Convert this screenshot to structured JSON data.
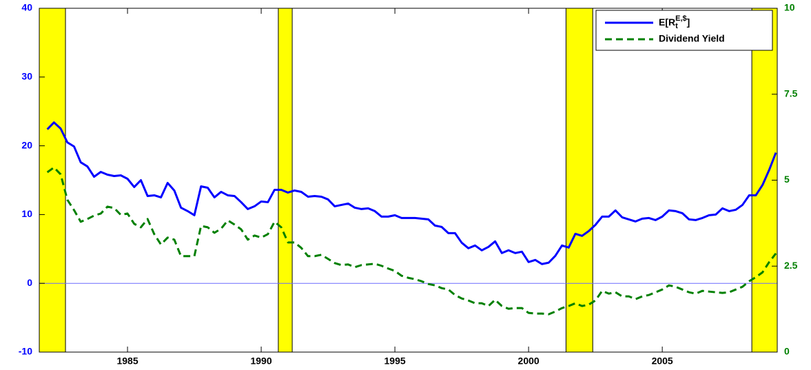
{
  "chart_data": {
    "type": "line",
    "xlim": [
      1981.7,
      2009.3
    ],
    "xticks": [
      1985,
      1990,
      1995,
      2000,
      2005
    ],
    "ylim": [
      -10,
      40
    ],
    "yticks": [
      -10,
      0,
      10,
      20,
      30,
      40
    ],
    "y2lim": [
      0,
      10
    ],
    "y2ticks": [
      0,
      2.5,
      5,
      7.5,
      10
    ],
    "y_color": "#0000ff",
    "y2_color": "#008000",
    "reference_line": {
      "value": 0,
      "color": "#6a6aff"
    },
    "shaded_regions": {
      "color": "#ffff00",
      "ranges": [
        [
          1981.7,
          1982.68
        ],
        [
          1990.64,
          1991.16
        ],
        [
          2001.4,
          2002.4
        ],
        [
          2008.35,
          2009.3
        ]
      ]
    },
    "legend": "upper right",
    "x": [
      1982,
      1982.25,
      1982.5,
      1982.75,
      1983,
      1983.25,
      1983.5,
      1983.75,
      1984,
      1984.25,
      1984.5,
      1984.75,
      1985,
      1985.25,
      1985.5,
      1985.75,
      1986,
      1986.25,
      1986.5,
      1986.75,
      1987,
      1987.25,
      1987.5,
      1987.75,
      1988,
      1988.25,
      1988.5,
      1988.75,
      1989,
      1989.25,
      1989.5,
      1989.75,
      1990,
      1990.25,
      1990.5,
      1990.75,
      1991,
      1991.25,
      1991.5,
      1991.75,
      1992,
      1992.25,
      1992.5,
      1992.75,
      1993,
      1993.25,
      1993.5,
      1993.75,
      1994,
      1994.25,
      1994.5,
      1994.75,
      1995,
      1995.25,
      1995.5,
      1995.75,
      1996,
      1996.25,
      1996.5,
      1996.75,
      1997,
      1997.25,
      1997.5,
      1997.75,
      1998,
      1998.25,
      1998.5,
      1998.75,
      1999,
      1999.25,
      1999.5,
      1999.75,
      2000,
      2000.25,
      2000.5,
      2000.75,
      2001,
      2001.25,
      2001.5,
      2001.75,
      2002,
      2002.25,
      2002.5,
      2002.75,
      2003,
      2003.25,
      2003.5,
      2003.75,
      2004,
      2004.25,
      2004.5,
      2004.75,
      2005,
      2005.25,
      2005.5,
      2005.75,
      2006,
      2006.25,
      2006.5,
      2006.75,
      2007,
      2007.25,
      2007.5,
      2007.75,
      2008,
      2008.25,
      2008.5,
      2008.75,
      2009,
      2009.25
    ],
    "series": [
      {
        "name": "E[R_t^{E,$}]",
        "color": "#0000ff",
        "dash": false,
        "values": [
          22.4,
          23.4,
          22.5,
          20.5,
          19.9,
          17.6,
          17.0,
          15.5,
          16.2,
          15.8,
          15.6,
          15.7,
          15.2,
          14.0,
          15.0,
          12.7,
          12.8,
          12.5,
          14.6,
          13.5,
          11.0,
          10.5,
          9.9,
          14.1,
          13.9,
          12.5,
          13.3,
          12.8,
          12.7,
          11.8,
          10.8,
          11.2,
          11.9,
          11.8,
          13.6,
          13.6,
          13.2,
          13.5,
          13.3,
          12.6,
          12.7,
          12.6,
          12.2,
          11.2,
          11.4,
          11.6,
          11.0,
          10.8,
          10.9,
          10.5,
          9.7,
          9.7,
          9.9,
          9.5,
          9.5,
          9.5,
          9.4,
          9.3,
          8.4,
          8.2,
          7.3,
          7.3,
          5.9,
          5.1,
          5.5,
          4.8,
          5.3,
          6.1,
          4.4,
          4.8,
          4.4,
          4.6,
          3.1,
          3.4,
          2.8,
          3.0,
          4.0,
          5.5,
          5.2,
          7.2,
          6.9,
          7.6,
          8.5,
          9.7,
          9.7,
          10.6,
          9.6,
          9.3,
          9.0,
          9.4,
          9.5,
          9.2,
          9.7,
          10.6,
          10.5,
          10.2,
          9.3,
          9.2,
          9.5,
          9.9,
          10.0,
          10.9,
          10.5,
          10.7,
          11.4,
          12.8,
          12.8,
          14.3,
          16.5,
          19.0
        ]
      },
      {
        "name": "Dividend Yield",
        "color": "#008000",
        "dash": true,
        "axis": "y2",
        "values": [
          5.23,
          5.37,
          5.17,
          4.43,
          4.13,
          3.79,
          3.87,
          3.97,
          4.03,
          4.23,
          4.19,
          3.99,
          4.03,
          3.73,
          3.63,
          3.87,
          3.43,
          3.13,
          3.33,
          3.27,
          2.79,
          2.79,
          2.79,
          3.67,
          3.63,
          3.47,
          3.59,
          3.83,
          3.71,
          3.57,
          3.27,
          3.39,
          3.33,
          3.43,
          3.79,
          3.63,
          3.19,
          3.19,
          3.03,
          2.79,
          2.79,
          2.83,
          2.71,
          2.59,
          2.53,
          2.55,
          2.47,
          2.53,
          2.55,
          2.57,
          2.51,
          2.43,
          2.36,
          2.22,
          2.16,
          2.12,
          2.06,
          1.98,
          1.94,
          1.86,
          1.82,
          1.66,
          1.56,
          1.5,
          1.42,
          1.42,
          1.34,
          1.52,
          1.34,
          1.26,
          1.28,
          1.28,
          1.14,
          1.12,
          1.12,
          1.1,
          1.18,
          1.28,
          1.34,
          1.42,
          1.34,
          1.38,
          1.5,
          1.78,
          1.7,
          1.74,
          1.62,
          1.62,
          1.54,
          1.62,
          1.66,
          1.74,
          1.82,
          1.94,
          1.9,
          1.82,
          1.74,
          1.7,
          1.78,
          1.76,
          1.74,
          1.72,
          1.74,
          1.82,
          1.9,
          2.06,
          2.18,
          2.32,
          2.62,
          2.87
        ]
      }
    ]
  }
}
